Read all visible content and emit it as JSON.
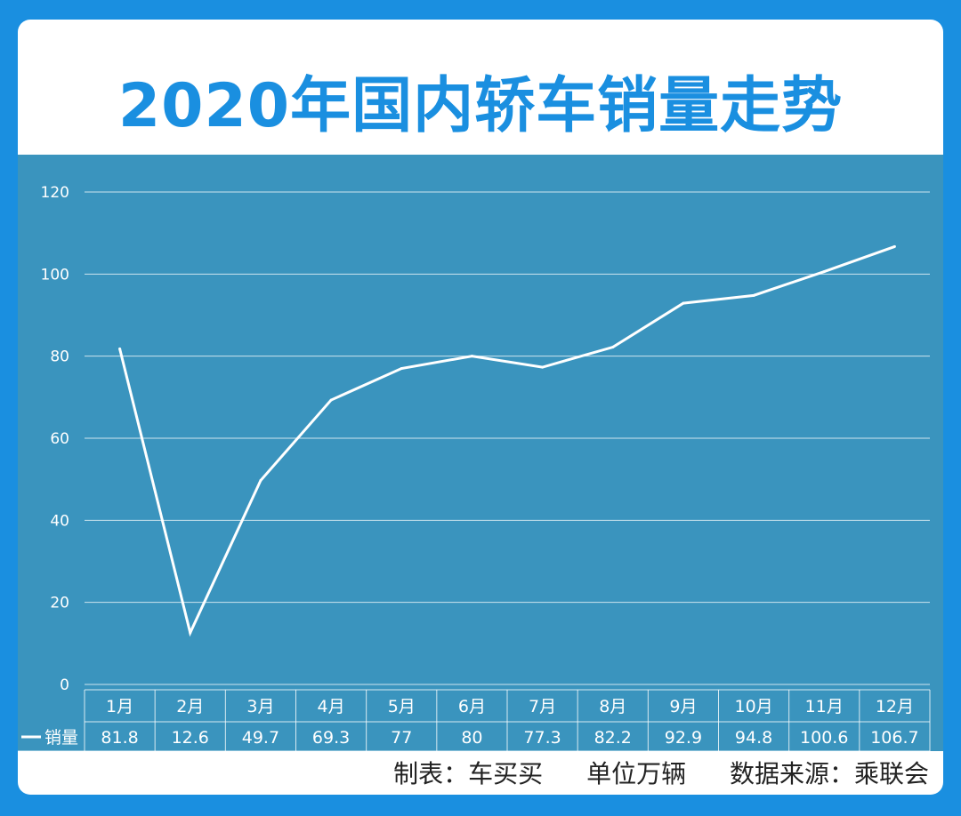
{
  "title": "2020年国内轿车销量走势",
  "chart_data": {
    "type": "line",
    "title": "2020年国内轿车销量走势",
    "categories": [
      "1月",
      "2月",
      "3月",
      "4月",
      "5月",
      "6月",
      "7月",
      "8月",
      "9月",
      "10月",
      "11月",
      "12月"
    ],
    "series": [
      {
        "name": "销量",
        "values": [
          81.8,
          12.6,
          49.7,
          69.3,
          77,
          80,
          77.3,
          82.2,
          92.9,
          94.8,
          100.6,
          106.7
        ]
      }
    ],
    "value_labels": [
      "81.8",
      "12.6",
      "49.7",
      "69.3",
      "77",
      "80",
      "77.3",
      "82.2",
      "92.9",
      "94.8",
      "100.6",
      "106.7"
    ],
    "yticks": [
      "0",
      "20",
      "40",
      "60",
      "80",
      "100",
      "120"
    ],
    "ylim": [
      0,
      120
    ],
    "grid": true,
    "legend": "data-table-left"
  },
  "footer": {
    "made_by": "制表：车买买",
    "unit": "单位万辆",
    "source": "数据来源：乘联会"
  },
  "colors": {
    "background": "#1a8fe0",
    "plot_bg": "#3a94be",
    "line": "#ffffff",
    "title": "#1a8fe0"
  }
}
